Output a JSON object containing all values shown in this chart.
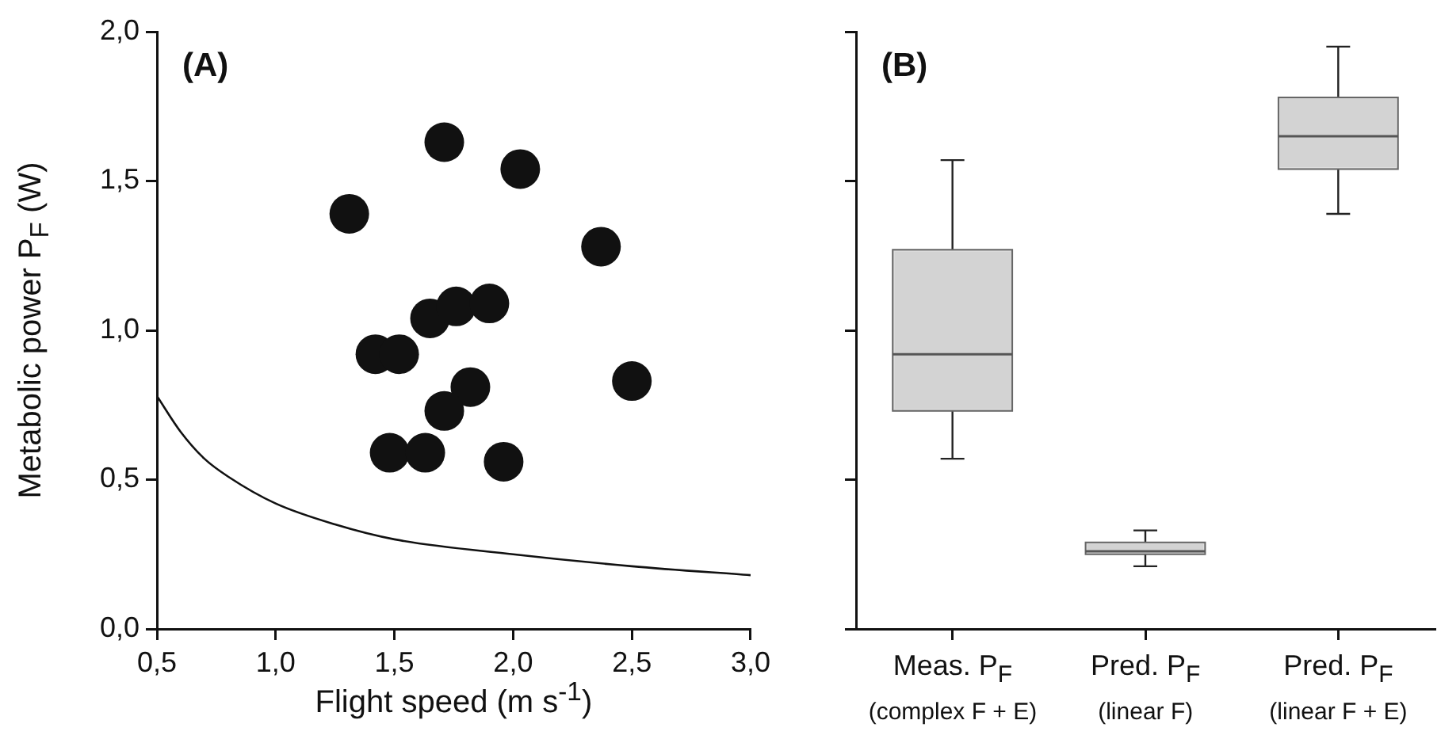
{
  "chart_data": [
    {
      "type": "scatter",
      "title": "(A)",
      "xlabel": "Flight speed (m s$^{-1}$)",
      "ylabel": "Metabolic power P$_{F}$ (W)",
      "xlim": [
        0.5,
        3.0
      ],
      "xticks": [
        {
          "value": 0.5,
          "label": "0,5"
        },
        {
          "value": 1.0,
          "label": "1,0"
        },
        {
          "value": 1.5,
          "label": "1,5"
        },
        {
          "value": 2.0,
          "label": "2,0"
        },
        {
          "value": 2.5,
          "label": "2,5"
        },
        {
          "value": 3.0,
          "label": "3,0"
        }
      ],
      "ylim": [
        0,
        2
      ],
      "yticks": [
        {
          "value": 0,
          "label": "0,0"
        },
        {
          "value": 0.5,
          "label": "0,5"
        },
        {
          "value": 1.0,
          "label": "1,0"
        },
        {
          "value": 1.5,
          "label": "1,5"
        },
        {
          "value": 2.0,
          "label": "2,0"
        }
      ],
      "grid": false,
      "marker": "circle",
      "series": [
        {
          "type": "scatter",
          "color": "#111111",
          "x": [
            1.31,
            1.71,
            2.03,
            2.37,
            1.65,
            1.76,
            1.9,
            1.42,
            1.52,
            1.82,
            2.5,
            1.71,
            1.48,
            1.63,
            1.96
          ],
          "values": [
            1.39,
            1.63,
            1.54,
            1.28,
            1.04,
            1.08,
            1.09,
            0.92,
            0.92,
            0.81,
            0.83,
            0.73,
            0.59,
            0.59,
            0.56
          ]
        },
        {
          "type": "line",
          "color": "#111111",
          "marker": "none",
          "x": [
            0.5,
            0.6,
            0.7,
            0.8,
            1.0,
            1.25,
            1.5,
            2.0,
            2.5,
            3.0
          ],
          "values": [
            0.78,
            0.66,
            0.57,
            0.51,
            0.42,
            0.35,
            0.3,
            0.25,
            0.21,
            0.18
          ]
        }
      ]
    },
    {
      "type": "box",
      "title": "(B)",
      "categories": [
        "Meas. P$_{F}$\n(complex F + E)",
        "Pred. P$_{F}$\n(linear F)",
        "Pred. P$_{F}$\n(linear F + E)"
      ],
      "ylim": [
        0,
        2
      ],
      "yticks": [
        {
          "value": 0,
          "label": null
        },
        {
          "value": 0.5,
          "label": null
        },
        {
          "value": 1.0,
          "label": null
        },
        {
          "value": 1.5,
          "label": null
        },
        {
          "value": 2.0,
          "label": null
        }
      ],
      "tick_labels": "x",
      "grid": false,
      "series": [
        {
          "color": "#d3d3d3",
          "boxes": [
            {
              "low": 0.57,
              "q1": 0.73,
              "median": 0.92,
              "q3": 1.27,
              "high": 1.57
            },
            {
              "low": 0.21,
              "q1": 0.25,
              "median": 0.26,
              "q3": 0.29,
              "high": 0.33
            },
            {
              "low": 1.39,
              "q1": 1.54,
              "median": 1.65,
              "q3": 1.78,
              "high": 1.95
            }
          ]
        }
      ]
    }
  ]
}
